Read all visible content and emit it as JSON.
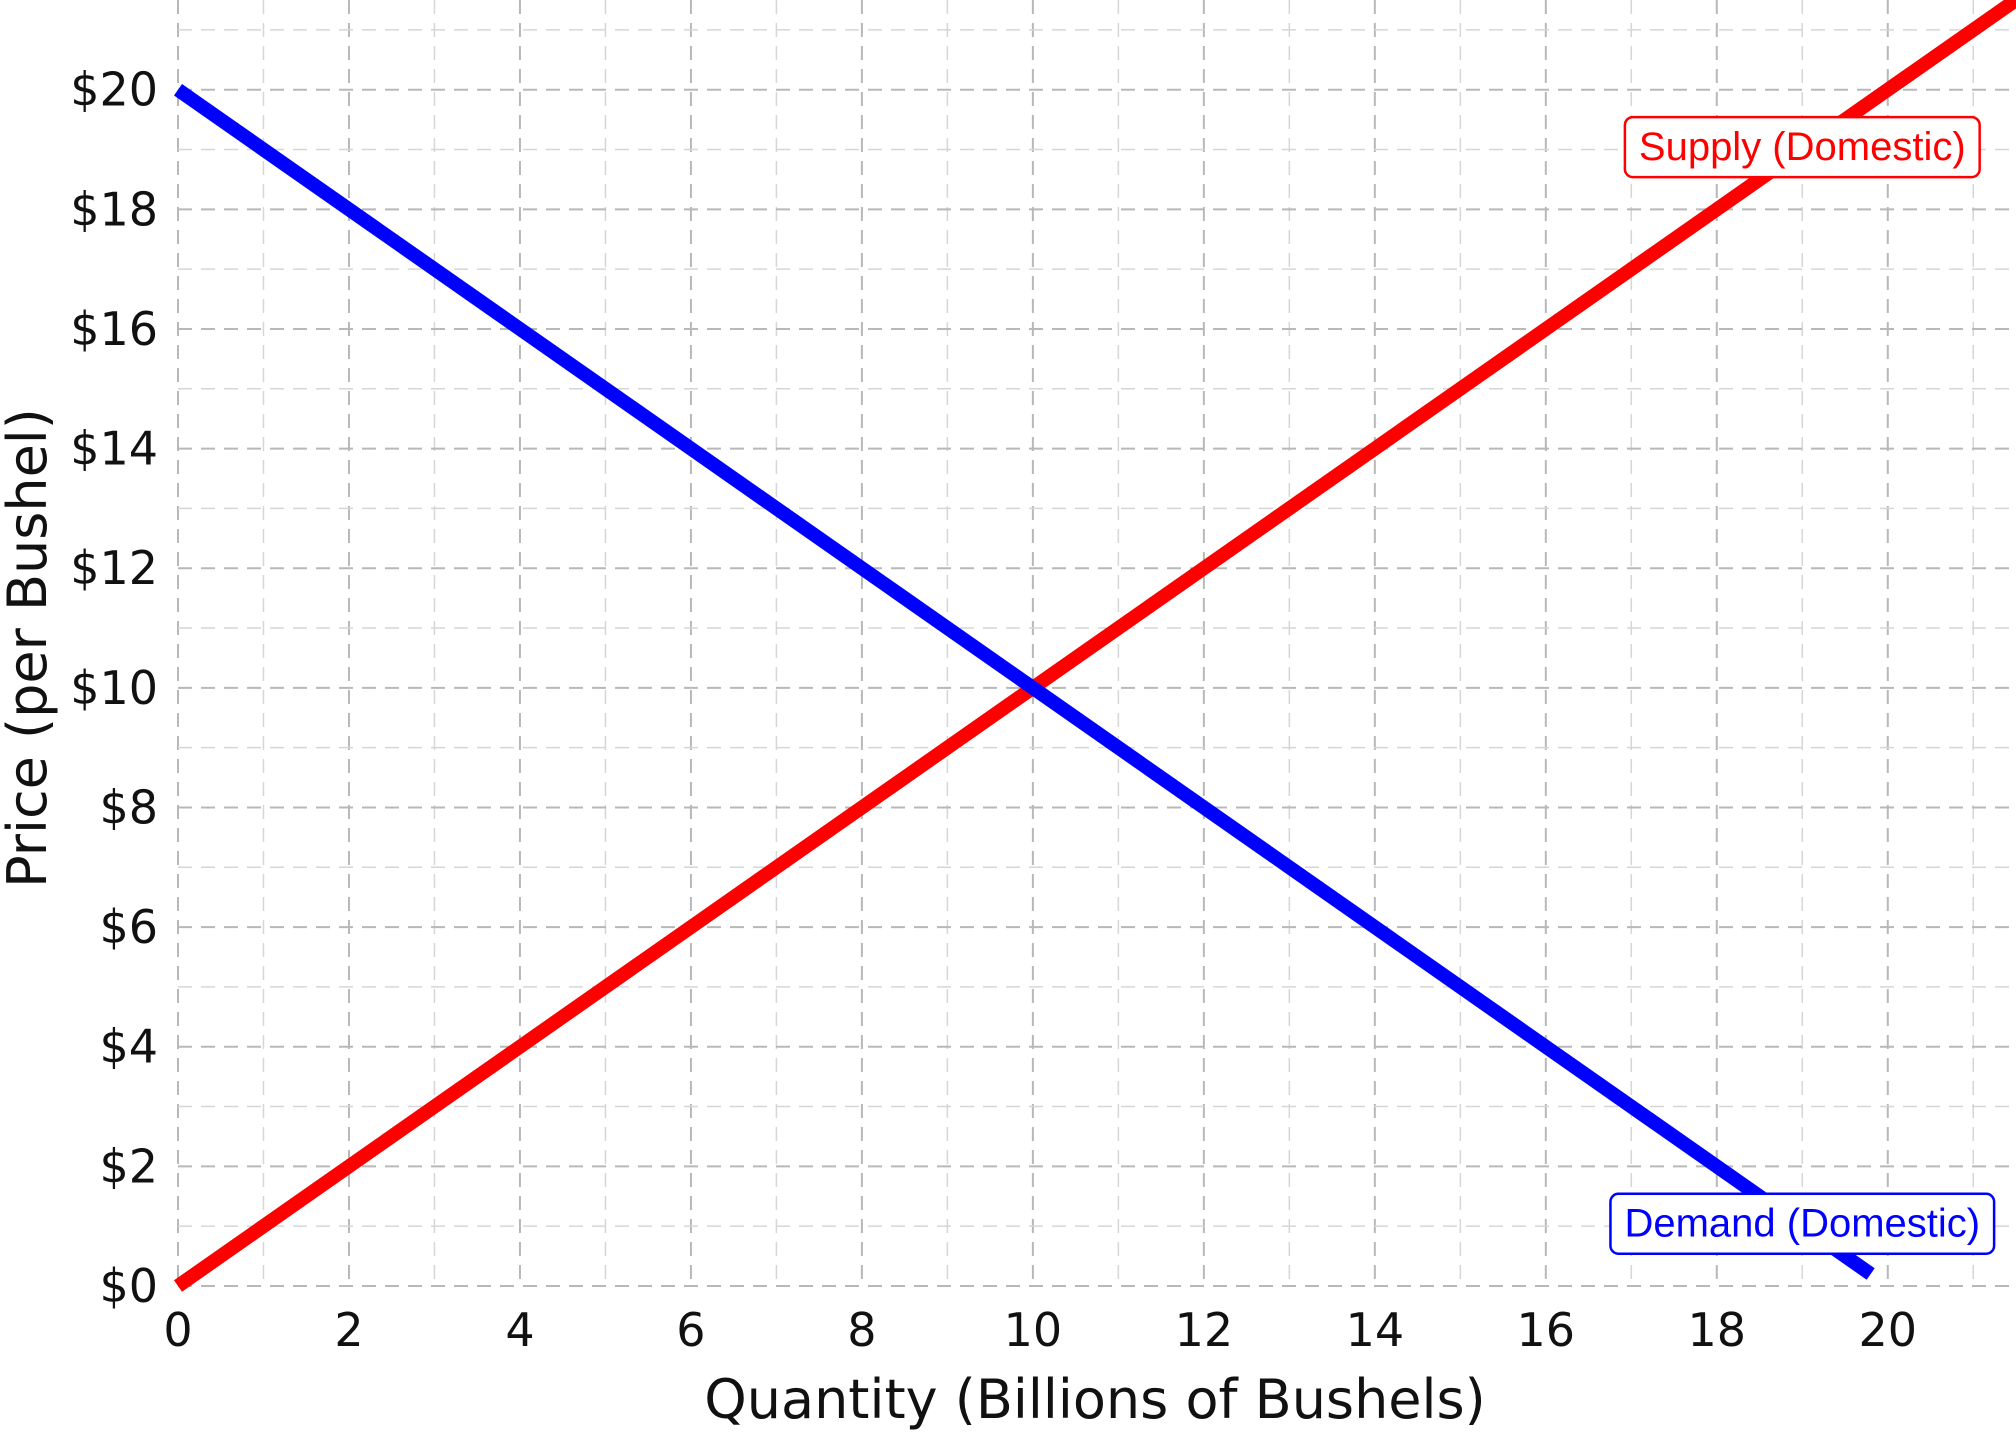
{
  "chart_data": {
    "type": "line",
    "title": "",
    "xlabel": "Quantity (Billions of Bushels)",
    "ylabel": "Price (per Bushel)",
    "xlim": [
      0,
      21.5
    ],
    "ylim": [
      0,
      21.5
    ],
    "x_ticks": [
      0,
      2,
      4,
      6,
      8,
      10,
      12,
      14,
      16,
      18,
      20
    ],
    "x_tick_labels": [
      "0",
      "2",
      "4",
      "6",
      "8",
      "10",
      "12",
      "14",
      "16",
      "18",
      "20"
    ],
    "y_ticks": [
      0,
      2,
      4,
      6,
      8,
      10,
      12,
      14,
      16,
      18,
      20
    ],
    "y_tick_labels": [
      "$0",
      "$2",
      "$4",
      "$6",
      "$8",
      "$10",
      "$12",
      "$14",
      "$16",
      "$18",
      "$20"
    ],
    "grid": true,
    "grid_style": "dashed",
    "series": [
      {
        "name": "Supply (Domestic)",
        "color": "#ff0000",
        "x": [
          0,
          21.5
        ],
        "y": [
          0,
          21.5
        ]
      },
      {
        "name": "Demand (Domestic)",
        "color": "#0000ff",
        "x": [
          0,
          19.8
        ],
        "y": [
          20,
          0.2
        ]
      }
    ],
    "annotations": [
      {
        "text": "Supply (Domestic)",
        "color": "#ff0000",
        "x": 19.0,
        "y": 19.0
      },
      {
        "text": "Demand (Domestic)",
        "color": "#0000ff",
        "x": 19.0,
        "y": 1.0
      }
    ]
  }
}
